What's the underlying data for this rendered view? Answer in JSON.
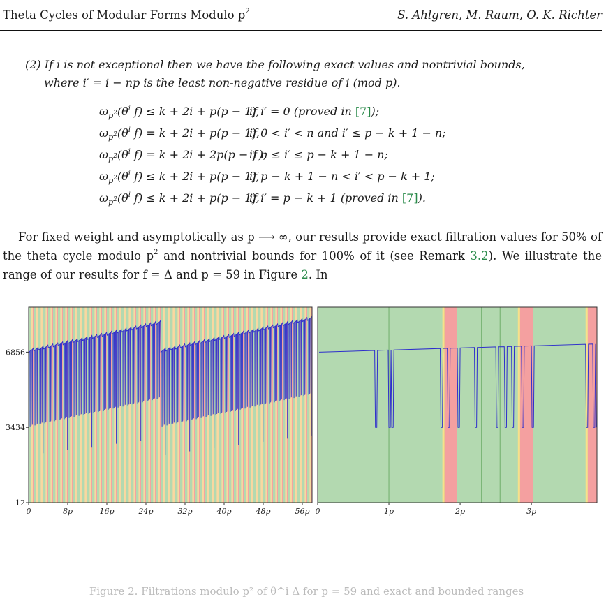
{
  "header": {
    "left_title": "Theta Cycles of Modular Forms Modulo p",
    "left_sup": "2",
    "right_authors": "S. Ahlgren, M. Raum, O. K. Richter"
  },
  "item2": {
    "line1": "(2) If i is not exceptional then we have the following exact values and nontrivial bounds,",
    "line2": "where i′ = i − np is the least non-negative residue of i (mod p)."
  },
  "equations": [
    {
      "lhs": "= k + 2i + p(p − 1),",
      "rel": "≤",
      "cond": "if i′ = 0 (proved in ",
      "ref": "[7]",
      "tail": ");"
    },
    {
      "lhs": "= k + 2i + p(p − 1),",
      "rel": "=",
      "cond": "if 0 < i′ < n and i′ ≤ p − k + 1 − n;",
      "ref": "",
      "tail": ""
    },
    {
      "lhs": "= k + 2i + 2p(p − 1),",
      "rel": "=",
      "cond": "if n ≤ i′ ≤ p − k + 1 − n;",
      "ref": "",
      "tail": ""
    },
    {
      "lhs": "= k + 2i + p(p − 1),",
      "rel": "≤",
      "cond": "if p − k + 1 − n < i′ < p − k + 1;",
      "ref": "",
      "tail": ""
    },
    {
      "lhs": "= k + 2i + p(p − 1),",
      "rel": "≤",
      "cond": "if i′ = p − k + 1 (proved in ",
      "ref": "[7]",
      "tail": ")."
    }
  ],
  "paragraph": {
    "part1": "For fixed weight and asymptotically as p ⟶ ∞, our results provide exact filtration values for 50% of the theta cycle modulo p",
    "sup": "2",
    "part2": " and nontrivial bounds for 100% of it (see Remark ",
    "remark_ref": "3.2",
    "part3": "). We illustrate the range of our results for f = Δ and p = 59 in Figure ",
    "figure_ref": "2",
    "part4": ". In"
  },
  "chart_data": [
    {
      "type": "line",
      "panel": "left",
      "y_ticks": [
        "6856",
        "3434",
        "12"
      ],
      "y_tick_values": [
        6856,
        3434,
        12
      ],
      "x_ticks": [
        "0",
        "8p",
        "16p",
        "24p",
        "32p",
        "40p",
        "48p",
        "56p"
      ],
      "x_tick_values": [
        0,
        8,
        16,
        24,
        32,
        40,
        48,
        56
      ],
      "xlim": [
        0,
        58
      ],
      "ylim": [
        12,
        8900
      ],
      "colors": {
        "line": "#2e2ecc",
        "exact": "#b3d9b0",
        "bound": "#f8d9a0",
        "exceptional": "#f4a0a0"
      }
    },
    {
      "type": "line",
      "panel": "right",
      "x_ticks": [
        "0",
        "1p",
        "2p",
        "3p"
      ],
      "x_tick_values": [
        0,
        1,
        2,
        3
      ],
      "xlim": [
        0,
        3.92
      ],
      "ylim": [
        12,
        8900
      ],
      "regions": [
        {
          "type": "exceptional",
          "start": 1.78,
          "end": 1.96
        },
        {
          "type": "exceptional",
          "start": 2.84,
          "end": 3.02
        },
        {
          "type": "exceptional",
          "start": 3.79,
          "end": 3.92
        }
      ],
      "colors": {
        "line": "#2e2ecc",
        "exact": "#b3d9b0",
        "bound": "#f8e08a",
        "exceptional": "#f4a0a0"
      }
    }
  ],
  "caption": "Figure 2. Filtrations modulo p² of θ^i Δ for p = 59 and exact and bounded ranges"
}
